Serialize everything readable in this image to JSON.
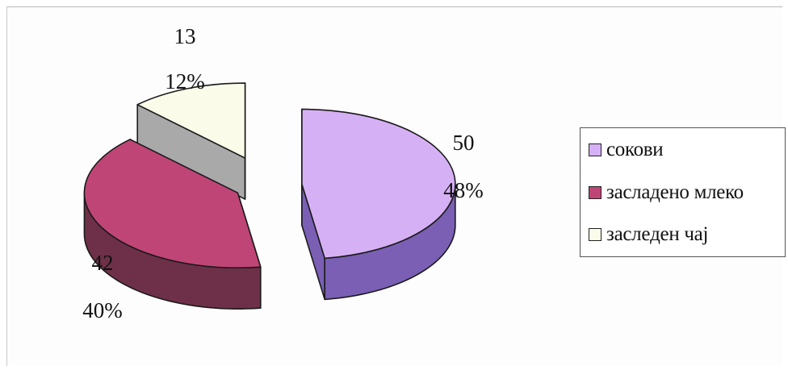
{
  "chart_data": {
    "type": "pie",
    "style": "3d-exploded",
    "categories": [
      "сокови",
      "засладено млеко",
      "заслeден чај"
    ],
    "values": [
      50,
      42,
      13
    ],
    "percentages": [
      "48%",
      "40%",
      "12%"
    ],
    "value_labels": [
      "50",
      "42",
      "13"
    ],
    "colors": {
      "top": [
        "#d6b0f4",
        "#c04577",
        "#fbfbea"
      ],
      "side": [
        "#7a5fb5",
        "#6e3048",
        "#a9a9a9"
      ]
    },
    "legend": {
      "position": "right",
      "entries": [
        {
          "label": "сокови",
          "color": "#d6b0f4"
        },
        {
          "label": "засладено млеко",
          "color": "#c04577"
        },
        {
          "label": "заслeден чај",
          "color": "#fbfbea"
        }
      ]
    }
  }
}
